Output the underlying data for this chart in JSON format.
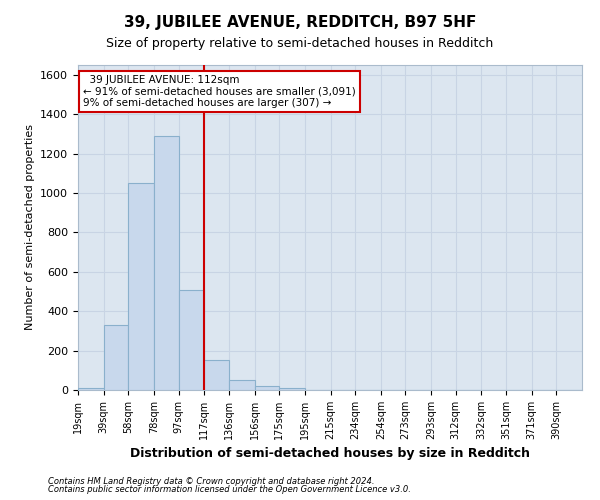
{
  "title": "39, JUBILEE AVENUE, REDDITCH, B97 5HF",
  "subtitle": "Size of property relative to semi-detached houses in Redditch",
  "xlabel": "Distribution of semi-detached houses by size in Redditch",
  "ylabel": "Number of semi-detached properties",
  "footnote1": "Contains HM Land Registry data © Crown copyright and database right 2024.",
  "footnote2": "Contains public sector information licensed under the Open Government Licence v3.0.",
  "annotation_title": "39 JUBILEE AVENUE: 112sqm",
  "annotation_line1": "← 91% of semi-detached houses are smaller (3,091)",
  "annotation_line2": "9% of semi-detached houses are larger (307) →",
  "property_size": 112,
  "bar_edges": [
    19,
    39,
    58,
    78,
    97,
    117,
    136,
    156,
    175,
    195,
    215,
    234,
    254,
    273,
    293,
    312,
    332,
    351,
    371,
    390,
    410
  ],
  "bar_heights": [
    10,
    330,
    1050,
    1290,
    510,
    150,
    50,
    20,
    10,
    2,
    1,
    0,
    0,
    0,
    0,
    0,
    0,
    0,
    0,
    0
  ],
  "bar_color": "#c8d8ec",
  "bar_edge_color": "#8ab0cc",
  "vline_color": "#cc0000",
  "vline_x": 117,
  "annotation_box_color": "#ffffff",
  "annotation_box_edge": "#cc0000",
  "grid_color": "#c8d4e4",
  "background_color": "#ffffff",
  "plot_bg_color": "#dce6f0",
  "ylim": [
    0,
    1650
  ],
  "yticks": [
    0,
    200,
    400,
    600,
    800,
    1000,
    1200,
    1400,
    1600
  ]
}
